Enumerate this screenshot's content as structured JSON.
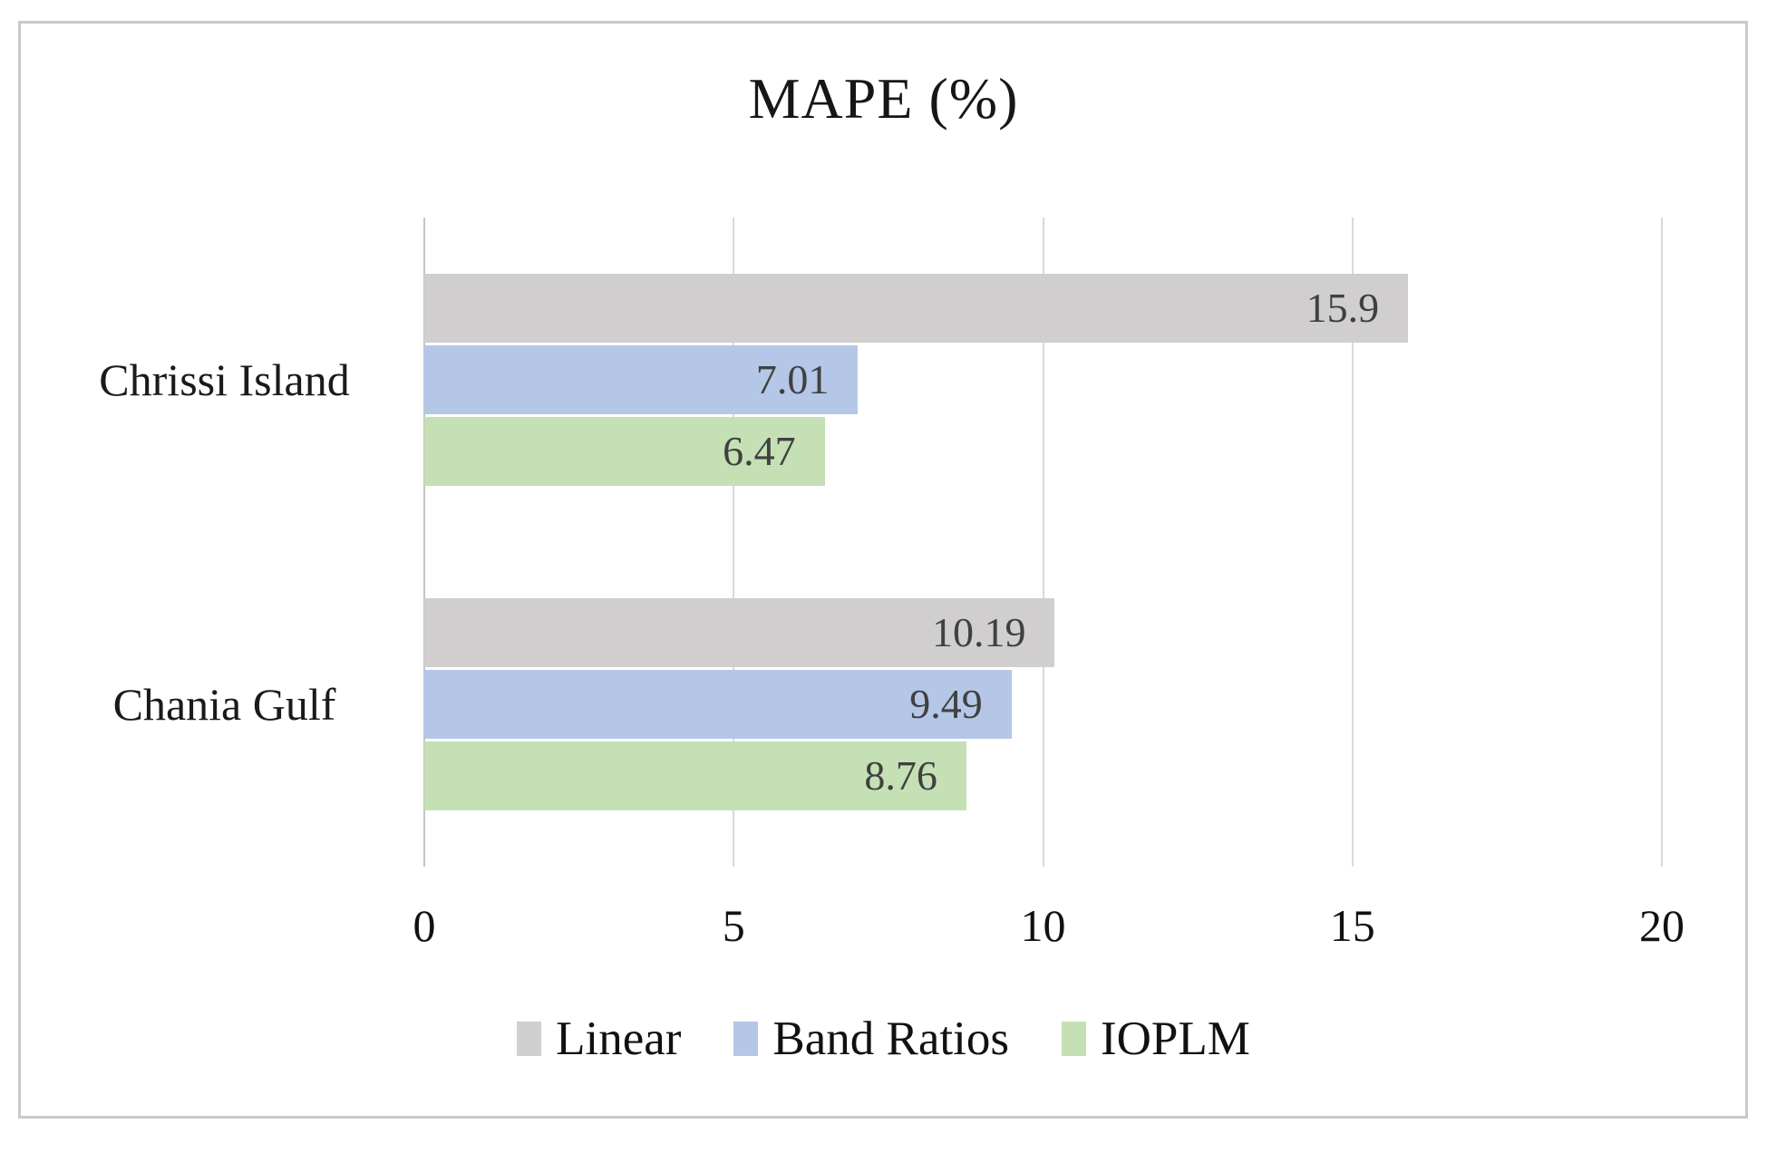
{
  "chart_data": {
    "type": "bar",
    "orientation": "horizontal",
    "title": "MAPE (%)",
    "categories": [
      "Chrissi Island",
      "Chania Gulf"
    ],
    "series": [
      {
        "name": "Linear",
        "color": "#d0cece",
        "values": [
          15.9,
          10.19
        ],
        "labels": [
          "15.9",
          "10.19"
        ]
      },
      {
        "name": "Band Ratios",
        "color": "#b4c7e7",
        "values": [
          7.01,
          9.49
        ],
        "labels": [
          "7.01",
          "9.49"
        ]
      },
      {
        "name": "IOPLM",
        "color": "#c5e0b4",
        "values": [
          6.47,
          8.76
        ],
        "labels": [
          "6.47",
          "8.76"
        ]
      }
    ],
    "x_axis": {
      "min": 0,
      "max": 20,
      "ticks": [
        0,
        5,
        10,
        15,
        20
      ],
      "tick_labels": [
        "0",
        "5",
        "10",
        "15",
        "20"
      ]
    },
    "grid": true,
    "legend_position": "bottom",
    "colors": {
      "value_label": "#404040",
      "gridline": "#d9d9d9",
      "frame_border": "#c9c9c9",
      "text": "#111111"
    }
  }
}
